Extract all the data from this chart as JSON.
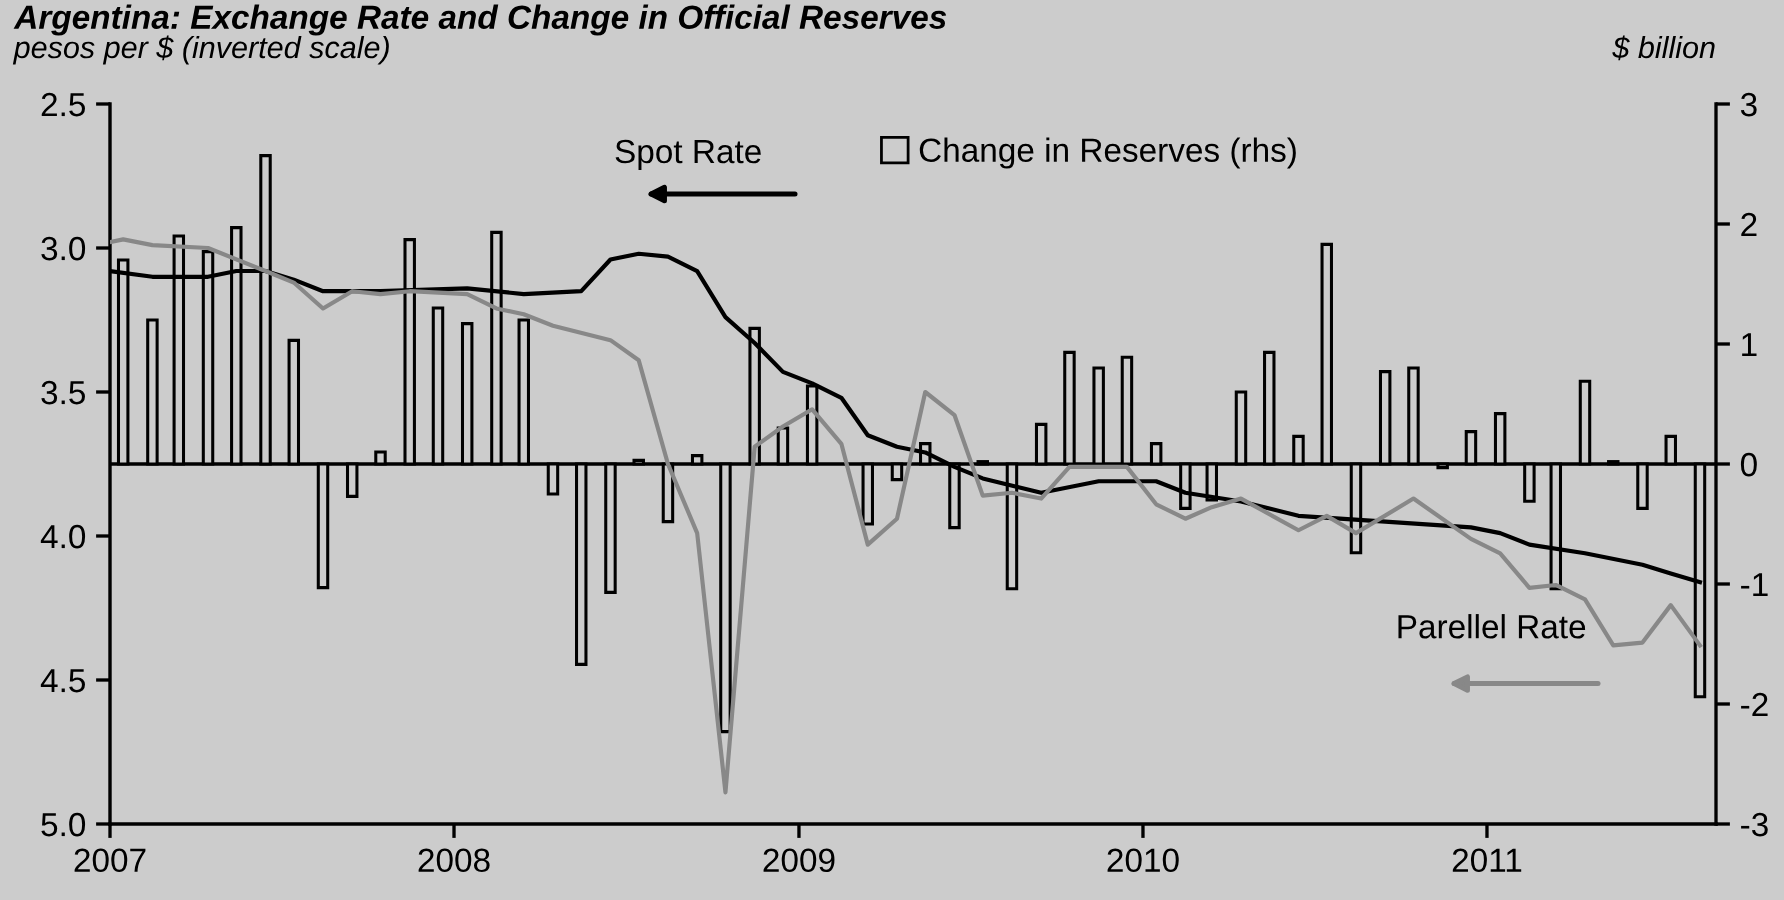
{
  "chart_data": {
    "type": "bar",
    "title": "Argentina: Exchange Rate and Change in Official Reserves",
    "ylabel": "pesos per $ (inverted scale)",
    "y2label": "$ billion",
    "xlim": [
      "2007-01-01",
      "2011-09-01"
    ],
    "xticks": [
      {
        "value": "2007-01-01",
        "label": "2007"
      },
      {
        "value": "2008-01-01",
        "label": "2008"
      },
      {
        "value": "2009-01-01",
        "label": "2009"
      },
      {
        "value": "2010-01-01",
        "label": "2010"
      },
      {
        "value": "2011-01-01",
        "label": "2011"
      }
    ],
    "ylim": [
      5.0,
      2.5
    ],
    "yticks": [
      {
        "value": 2.5,
        "label": "2.5"
      },
      {
        "value": 3.0,
        "label": "3.0"
      },
      {
        "value": 3.5,
        "label": "3.5"
      },
      {
        "value": 4.0,
        "label": "4.0"
      },
      {
        "value": 4.5,
        "label": "4.5"
      },
      {
        "value": 5.0,
        "label": "5.0"
      }
    ],
    "y2lim": [
      -3,
      3
    ],
    "y2ticks": [
      3,
      2,
      1,
      0,
      -1,
      -2,
      -3
    ],
    "legend": "top",
    "series": [
      {
        "name": "Change in Reserves (rhs)",
        "axis": "y2",
        "color": "#cccccc",
        "x": [
          "2007-01-15",
          "2007-02-15",
          "2007-03-15",
          "2007-04-15",
          "2007-05-15",
          "2007-06-15",
          "2007-07-15",
          "2007-08-15",
          "2007-09-15",
          "2007-10-15",
          "2007-11-15",
          "2007-12-15",
          "2008-01-15",
          "2008-02-15",
          "2008-03-15",
          "2008-04-15",
          "2008-05-15",
          "2008-06-15",
          "2008-07-15",
          "2008-08-15",
          "2008-09-15",
          "2008-10-15",
          "2008-11-15",
          "2008-12-15",
          "2009-01-15",
          "2009-02-15",
          "2009-03-15",
          "2009-04-15",
          "2009-05-15",
          "2009-06-15",
          "2009-07-15",
          "2009-08-15",
          "2009-09-15",
          "2009-10-15",
          "2009-11-15",
          "2009-12-15",
          "2010-01-15",
          "2010-02-15",
          "2010-03-15",
          "2010-04-15",
          "2010-05-15",
          "2010-06-15",
          "2010-07-15",
          "2010-08-15",
          "2010-09-15",
          "2010-10-15",
          "2010-11-15",
          "2010-12-15",
          "2011-01-15",
          "2011-02-15",
          "2011-03-15",
          "2011-04-15",
          "2011-05-15",
          "2011-06-15",
          "2011-07-15",
          "2011-08-15"
        ],
        "values": [
          1.7,
          1.2,
          1.9,
          1.77,
          1.97,
          2.57,
          1.03,
          -1.03,
          -0.27,
          0.1,
          1.87,
          1.3,
          1.17,
          1.93,
          1.2,
          -0.25,
          -1.67,
          -1.07,
          0.03,
          -0.48,
          0.07,
          -2.23,
          1.13,
          0.3,
          0.65,
          null,
          -0.5,
          -0.13,
          0.17,
          -0.53,
          0.02,
          -1.04,
          0.33,
          0.93,
          0.8,
          0.89,
          0.17,
          -0.37,
          -0.3,
          0.6,
          0.93,
          0.23,
          1.83,
          -0.74,
          0.77,
          0.8,
          -0.03,
          0.27,
          0.42,
          -0.31,
          -1.04,
          0.69,
          0.02,
          -0.37,
          0.23,
          -1.94
        ]
      },
      {
        "name": "Spot Rate",
        "type": "line",
        "color": "#000000",
        "x": [
          "2007-01-01",
          "2007-02-15",
          "2007-04-15",
          "2007-05-15",
          "2007-06-15",
          "2007-07-15",
          "2007-08-15",
          "2007-10-15",
          "2008-01-15",
          "2008-03-15",
          "2008-05-15",
          "2008-06-15",
          "2008-07-15",
          "2008-08-15",
          "2008-09-15",
          "2008-10-15",
          "2008-11-15",
          "2008-12-15",
          "2009-01-15",
          "2009-02-15",
          "2009-03-15",
          "2009-04-15",
          "2009-05-15",
          "2009-06-15",
          "2009-07-15",
          "2009-09-15",
          "2009-11-15",
          "2010-01-15",
          "2010-02-15",
          "2010-04-15",
          "2010-06-15",
          "2010-09-15",
          "2010-12-15",
          "2011-01-15",
          "2011-02-15",
          "2011-04-15",
          "2011-06-15",
          "2011-07-15",
          "2011-08-15"
        ],
        "values": [
          3.08,
          3.1,
          3.1,
          3.08,
          3.08,
          3.11,
          3.15,
          3.15,
          3.14,
          3.16,
          3.15,
          3.04,
          3.02,
          3.03,
          3.08,
          3.24,
          3.33,
          3.43,
          3.47,
          3.52,
          3.65,
          3.69,
          3.71,
          3.76,
          3.8,
          3.85,
          3.81,
          3.81,
          3.85,
          3.88,
          3.93,
          3.95,
          3.97,
          3.99,
          4.03,
          4.06,
          4.1,
          4.13,
          4.16
        ]
      },
      {
        "name": "Parellel Rate",
        "type": "line",
        "color": "#888888",
        "x": [
          "2007-01-01",
          "2007-01-15",
          "2007-02-15",
          "2007-04-15",
          "2007-06-15",
          "2007-07-15",
          "2007-08-15",
          "2007-09-15",
          "2007-10-15",
          "2007-11-15",
          "2008-01-15",
          "2008-02-15",
          "2008-03-15",
          "2008-04-15",
          "2008-06-15",
          "2008-07-15",
          "2008-08-15",
          "2008-09-15",
          "2008-10-15",
          "2008-11-15",
          "2008-12-15",
          "2009-01-15",
          "2009-02-15",
          "2009-03-15",
          "2009-04-15",
          "2009-05-15",
          "2009-06-15",
          "2009-07-15",
          "2009-08-15",
          "2009-09-15",
          "2009-10-15",
          "2009-12-15",
          "2010-01-15",
          "2010-02-15",
          "2010-03-15",
          "2010-04-15",
          "2010-06-15",
          "2010-07-15",
          "2010-08-15",
          "2010-10-15",
          "2010-12-15",
          "2011-01-15",
          "2011-02-15",
          "2011-03-15",
          "2011-04-15",
          "2011-05-15",
          "2011-06-15",
          "2011-07-15",
          "2011-08-15"
        ],
        "values": [
          2.98,
          2.97,
          2.99,
          3.0,
          3.08,
          3.12,
          3.21,
          3.15,
          3.16,
          3.15,
          3.16,
          3.21,
          3.23,
          3.27,
          3.32,
          3.39,
          3.75,
          3.99,
          4.89,
          3.69,
          3.62,
          3.56,
          3.68,
          4.03,
          3.94,
          3.5,
          3.58,
          3.86,
          3.85,
          3.87,
          3.76,
          3.76,
          3.89,
          3.94,
          3.9,
          3.87,
          3.98,
          3.93,
          3.99,
          3.87,
          4.01,
          4.06,
          4.18,
          4.17,
          4.22,
          4.38,
          4.37,
          4.24,
          4.38
        ]
      }
    ]
  }
}
